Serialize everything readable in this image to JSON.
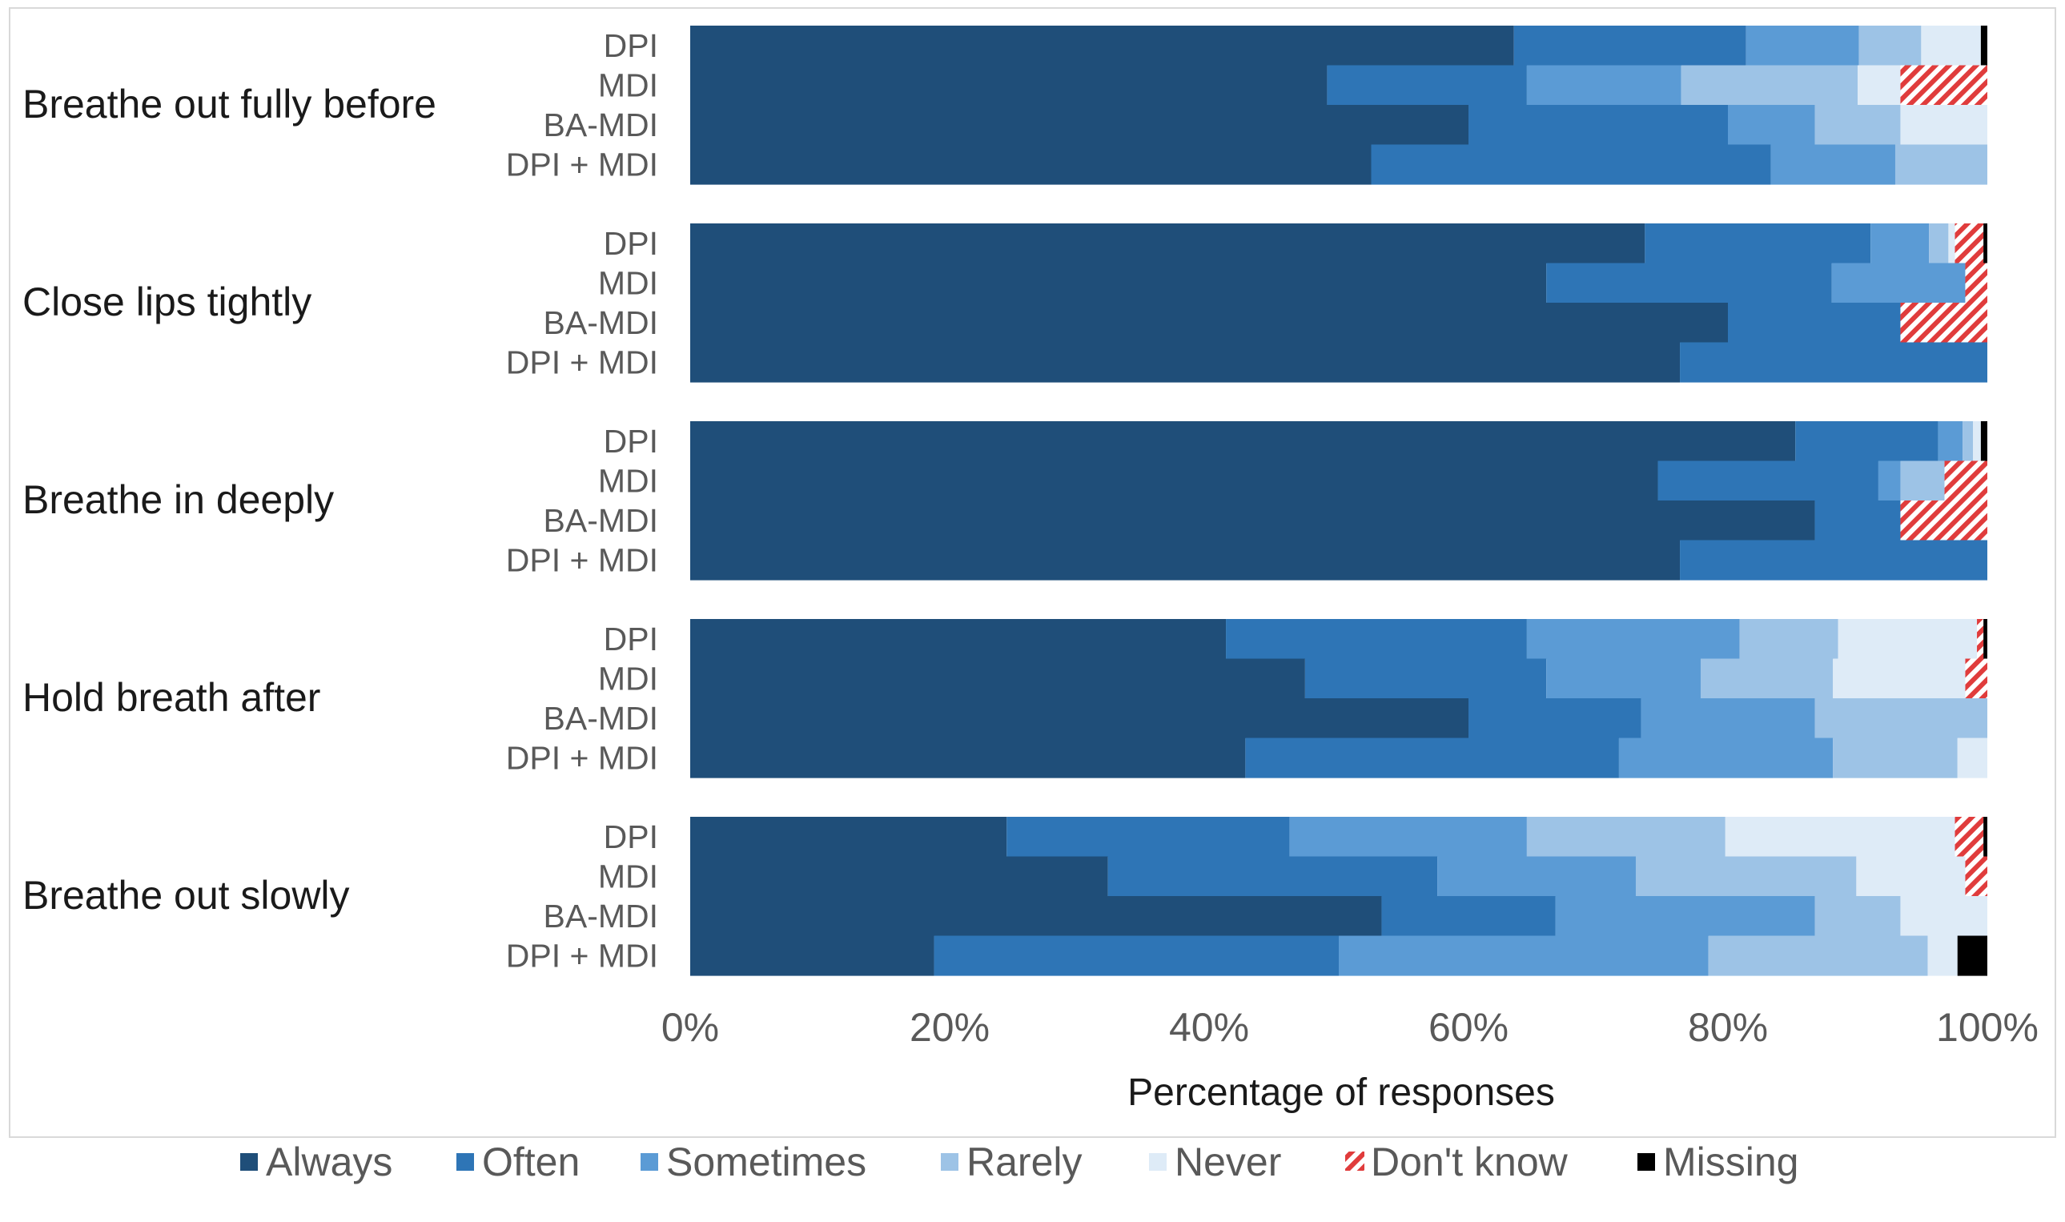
{
  "chart_data": {
    "type": "bar",
    "orientation": "horizontal",
    "stacked": "100%",
    "xlabel": "Percentage of responses",
    "x_ticks": [
      "0%",
      "20%",
      "40%",
      "60%",
      "80%",
      "100%"
    ],
    "xlim": [
      0,
      100
    ],
    "categories": [
      "Always",
      "Often",
      "Sometimes",
      "Rarely",
      "Never",
      "Don't know",
      "Missing"
    ],
    "colors": {
      "Always": "#1f4e79",
      "Often": "#2e75b6",
      "Sometimes": "#5b9bd5",
      "Rarely": "#9dc3e6",
      "Never": "#deebf7",
      "Don't know": "#e03c3c",
      "Missing": "#000000"
    },
    "legend_position": "bottom",
    "groups": [
      {
        "title": "Breathe out fully before",
        "rows": [
          {
            "label": "DPI",
            "values": [
              63.5,
              17.9,
              8.7,
              4.8,
              4.6,
              0,
              0.5
            ]
          },
          {
            "label": "MDI",
            "values": [
              49.1,
              15.4,
              11.9,
              13.6,
              3.3,
              6.7,
              0
            ]
          },
          {
            "label": "BA-MDI",
            "values": [
              60.0,
              20.0,
              6.7,
              6.6,
              6.7,
              0,
              0
            ]
          },
          {
            "label": "DPI + MDI",
            "values": [
              52.5,
              30.8,
              9.6,
              7.1,
              0,
              0,
              0
            ]
          }
        ]
      },
      {
        "title": "Close lips tightly",
        "rows": [
          {
            "label": "DPI",
            "values": [
              73.6,
              17.4,
              4.5,
              1.5,
              0.5,
              2.2,
              0.3
            ]
          },
          {
            "label": "MDI",
            "values": [
              66.0,
              22.0,
              10.3,
              0,
              0,
              1.7,
              0
            ]
          },
          {
            "label": "BA-MDI",
            "values": [
              80.0,
              13.3,
              0,
              0,
              0,
              6.7,
              0
            ]
          },
          {
            "label": "DPI + MDI",
            "values": [
              76.3,
              23.7,
              0,
              0,
              0,
              0,
              0
            ]
          }
        ]
      },
      {
        "title": "Breathe in deeply",
        "rows": [
          {
            "label": "DPI",
            "values": [
              85.2,
              11.0,
              1.9,
              0.8,
              0.6,
              0,
              0.5
            ]
          },
          {
            "label": "MDI",
            "values": [
              74.6,
              17.0,
              1.7,
              3.4,
              0,
              3.3,
              0
            ]
          },
          {
            "label": "BA-MDI",
            "values": [
              86.7,
              6.6,
              0,
              0,
              0,
              6.7,
              0
            ]
          },
          {
            "label": "DPI + MDI",
            "values": [
              76.3,
              23.7,
              0,
              0,
              0,
              0,
              0
            ]
          }
        ]
      },
      {
        "title": "Hold breath after",
        "rows": [
          {
            "label": "DPI",
            "values": [
              41.3,
              23.2,
              16.4,
              7.6,
              10.7,
              0.5,
              0.3
            ]
          },
          {
            "label": "MDI",
            "values": [
              47.4,
              18.6,
              11.9,
              10.2,
              10.2,
              1.7,
              0
            ]
          },
          {
            "label": "BA-MDI",
            "values": [
              60.0,
              13.3,
              13.4,
              13.3,
              0,
              0,
              0
            ]
          },
          {
            "label": "DPI + MDI",
            "values": [
              42.8,
              28.8,
              16.5,
              9.6,
              2.3,
              0,
              0
            ]
          }
        ]
      },
      {
        "title": "Breathe out slowly",
        "rows": [
          {
            "label": "DPI",
            "values": [
              24.4,
              21.8,
              18.3,
              15.3,
              17.7,
              2.2,
              0.3
            ]
          },
          {
            "label": "MDI",
            "values": [
              32.2,
              25.4,
              15.3,
              17.0,
              8.4,
              1.7,
              0
            ]
          },
          {
            "label": "BA-MDI",
            "values": [
              53.3,
              13.4,
              20.0,
              6.6,
              6.7,
              0,
              0
            ]
          },
          {
            "label": "DPI + MDI",
            "values": [
              18.8,
              31.2,
              28.5,
              16.9,
              2.3,
              0,
              2.3
            ]
          }
        ]
      }
    ]
  }
}
